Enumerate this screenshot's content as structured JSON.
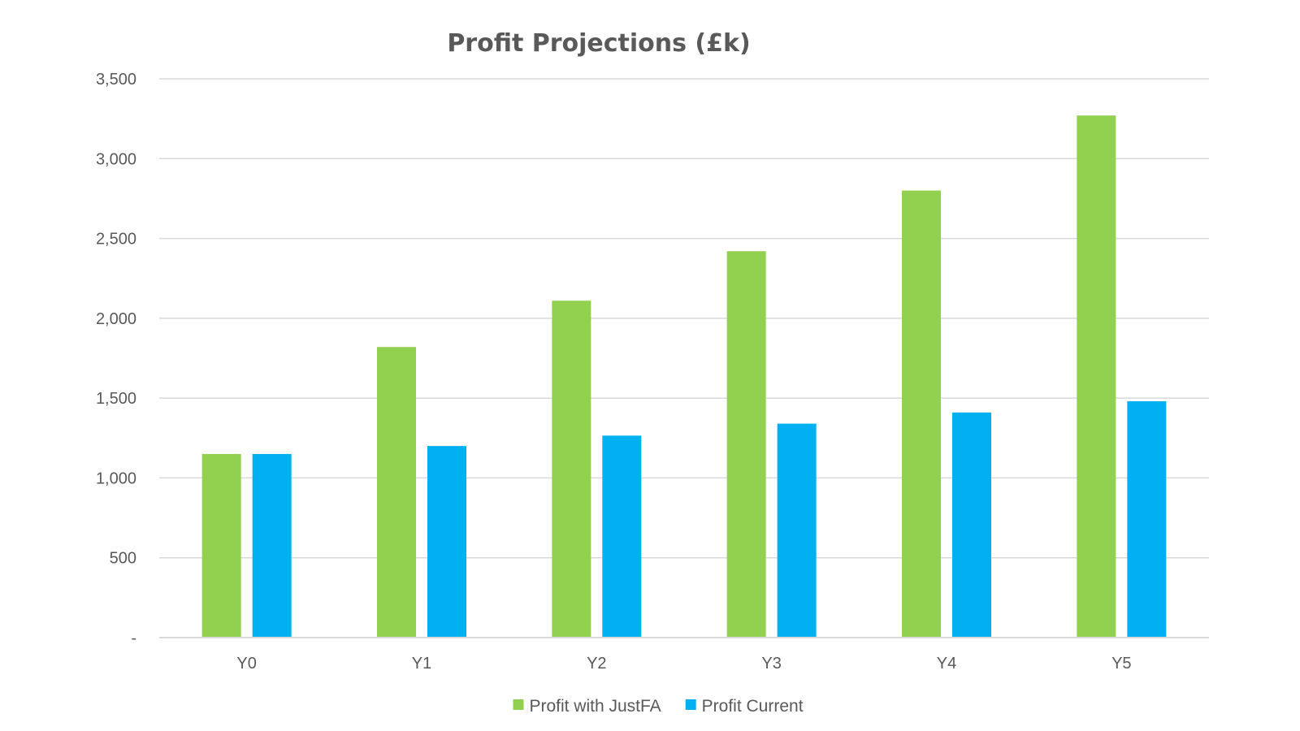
{
  "chart_data": {
    "type": "bar",
    "title": "Profit Projections (£k)",
    "categories": [
      "Y0",
      "Y1",
      "Y2",
      "Y3",
      "Y4",
      "Y5"
    ],
    "series": [
      {
        "name": "Profit with JustFA",
        "color": "#92d050",
        "values": [
          1150,
          1820,
          2110,
          2420,
          2800,
          3270
        ]
      },
      {
        "name": "Profit Current",
        "color": "#00b0f0",
        "values": [
          1150,
          1200,
          1265,
          1340,
          1410,
          1480
        ]
      }
    ],
    "ylim": [
      0,
      3500
    ],
    "yticks": [
      {
        "value": 0,
        "label": "-"
      },
      {
        "value": 500,
        "label": "500"
      },
      {
        "value": 1000,
        "label": "1,000"
      },
      {
        "value": 1500,
        "label": "1,500"
      },
      {
        "value": 2000,
        "label": "2,000"
      },
      {
        "value": 2500,
        "label": "2,500"
      },
      {
        "value": 3000,
        "label": "3,000"
      },
      {
        "value": 3500,
        "label": "3,500"
      }
    ],
    "grid": true,
    "legend_position": "bottom"
  }
}
